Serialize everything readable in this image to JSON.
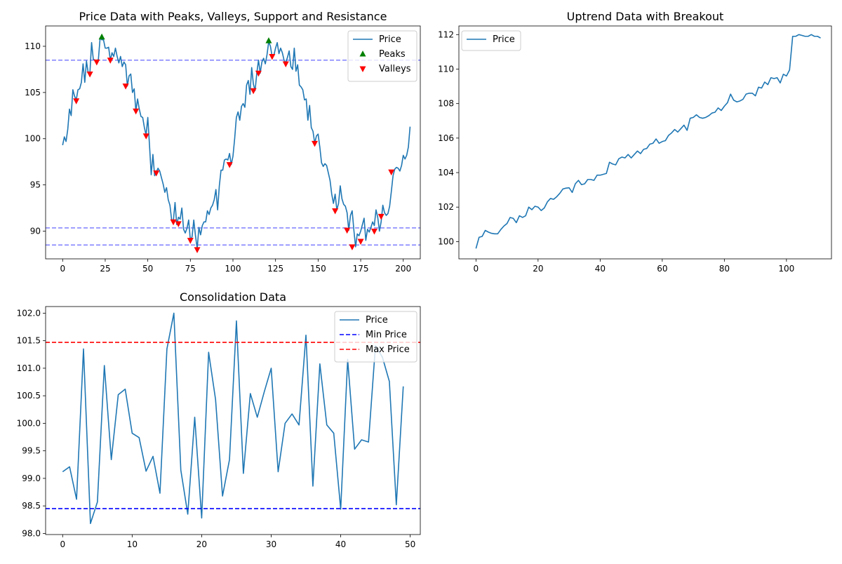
{
  "chart_data": [
    {
      "type": "line",
      "title": "Price Data with Peaks, Valleys, Support and Resistance",
      "xlim": [
        -10,
        210
      ],
      "ylim": [
        87,
        112.2
      ],
      "xticks": [
        0,
        25,
        50,
        75,
        100,
        125,
        150,
        175,
        200
      ],
      "yticks": [
        90,
        95,
        100,
        105,
        110
      ],
      "x_start": 0,
      "x_step": 1,
      "legend": {
        "position": "top-right",
        "entries": [
          "Price",
          "Peaks",
          "Valleys"
        ]
      },
      "series": [
        {
          "name": "Price",
          "color": "#1f77b4",
          "values": [
            99.3,
            100.2,
            99.7,
            101.0,
            103.2,
            102.5,
            105.3,
            104.6,
            104.2,
            105.3,
            105.4,
            106.1,
            108.1,
            106.1,
            108.4,
            107.1,
            107.1,
            110.4,
            108.6,
            108.5,
            108.4,
            108.6,
            110.9,
            110.7,
            110.7,
            109.8,
            109.8,
            109.9,
            108.5,
            109.3,
            108.9,
            109.8,
            108.9,
            108.2,
            108.9,
            107.8,
            108.3,
            108.0,
            105.7,
            106.8,
            107.0,
            105.0,
            105.4,
            103.0,
            104.3,
            103.2,
            102.4,
            102.3,
            101.2,
            100.4,
            102.3,
            99.3,
            96.1,
            98.3,
            96.0,
            96.4,
            96.8,
            96.5,
            95.8,
            95.1,
            94.2,
            94.7,
            93.4,
            92.8,
            91.2,
            91.1,
            93.1,
            90.7,
            91.5,
            91.3,
            92.5,
            90.2,
            89.8,
            90.3,
            91.2,
            89.0,
            89.4,
            91.2,
            89.5,
            88.1,
            90.4,
            89.6,
            90.6,
            91.0,
            91.0,
            92.2,
            91.8,
            92.5,
            92.8,
            93.4,
            94.5,
            92.3,
            94.9,
            96.6,
            96.6,
            97.7,
            97.8,
            97.7,
            98.4,
            97.2,
            98.1,
            100.0,
            102.3,
            102.9,
            102.0,
            103.5,
            103.8,
            103.4,
            105.8,
            106.3,
            104.8,
            107.7,
            105.9,
            105.2,
            107.1,
            108.5,
            107.1,
            108.3,
            108.7,
            108.1,
            109.1,
            110.5,
            110.0,
            108.9,
            109.0,
            109.8,
            110.4,
            109.2,
            109.8,
            109.3,
            108.5,
            108.2,
            108.8,
            109.5,
            107.8,
            107.5,
            109.8,
            107.3,
            108.0,
            105.8,
            105.6,
            105.3,
            104.2,
            104.3,
            102.0,
            103.6,
            101.2,
            100.8,
            99.5,
            100.3,
            100.5,
            99.1,
            97.4,
            97.0,
            97.3,
            97.1,
            96.3,
            95.5,
            94.0,
            93.0,
            94.0,
            92.3,
            93.0,
            94.9,
            93.5,
            92.9,
            92.7,
            92.0,
            90.1,
            91.7,
            92.2,
            90.1,
            88.3,
            89.7,
            89.5,
            90.0,
            90.7,
            91.4,
            89.0,
            90.2,
            89.9,
            90.4,
            91.0,
            90.6,
            92.3,
            91.5,
            90.0,
            91.0,
            92.8,
            92.0,
            91.7,
            91.9,
            92.7,
            94.3,
            96.0,
            96.7,
            96.9,
            96.8,
            96.5,
            97.1,
            98.2,
            97.8,
            98.2,
            99.1,
            101.3
          ]
        },
        {
          "name": "Peaks",
          "color": "#008000",
          "marker": "^",
          "points": [
            [
              23,
              111.0
            ],
            [
              121,
              110.6
            ]
          ]
        },
        {
          "name": "Valleys",
          "color": "#ff0000",
          "marker": "v",
          "points": [
            [
              8,
              104.1
            ],
            [
              16,
              107.0
            ],
            [
              20,
              108.3
            ],
            [
              28,
              108.5
            ],
            [
              37,
              105.7
            ],
            [
              43,
              103.0
            ],
            [
              49,
              100.3
            ],
            [
              55,
              96.3
            ],
            [
              65,
              91.0
            ],
            [
              68,
              90.8
            ],
            [
              75,
              89.0
            ],
            [
              79,
              88.0
            ],
            [
              98,
              97.2
            ],
            [
              112,
              105.2
            ],
            [
              115,
              107.1
            ],
            [
              123,
              108.9
            ],
            [
              131,
              108.1
            ],
            [
              148,
              99.5
            ],
            [
              160,
              92.2
            ],
            [
              167,
              90.1
            ],
            [
              170,
              88.3
            ],
            [
              175,
              88.9
            ],
            [
              183,
              90.0
            ],
            [
              187,
              91.6
            ],
            [
              193,
              96.4
            ]
          ]
        }
      ],
      "hlines": [
        {
          "y": 108.5,
          "color": "#0000ff",
          "alpha": 0.5,
          "style": "dashed"
        },
        {
          "y": 90.35,
          "color": "#0000ff",
          "alpha": 0.5,
          "style": "dashed"
        },
        {
          "y": 88.5,
          "color": "#0000ff",
          "alpha": 0.5,
          "style": "dashed"
        }
      ]
    },
    {
      "type": "line",
      "title": "Uptrend Data with Breakout",
      "xlim": [
        -5.5,
        114.5
      ],
      "ylim": [
        99.0,
        112.5
      ],
      "xticks": [
        0,
        20,
        40,
        60,
        80,
        100
      ],
      "yticks": [
        100,
        102,
        104,
        106,
        108,
        110,
        112
      ],
      "x_start": 0,
      "x_step": 1,
      "legend": {
        "position": "top-left",
        "entries": [
          "Price"
        ]
      },
      "series": [
        {
          "name": "Price",
          "color": "#1f77b4",
          "values": [
            99.6,
            100.25,
            100.3,
            100.65,
            100.55,
            100.48,
            100.45,
            100.45,
            100.7,
            100.9,
            101.05,
            101.4,
            101.35,
            101.1,
            101.5,
            101.4,
            101.5,
            102.0,
            101.85,
            102.05,
            102.0,
            101.8,
            101.95,
            102.3,
            102.5,
            102.45,
            102.6,
            102.8,
            103.05,
            103.1,
            103.12,
            102.85,
            103.35,
            103.55,
            103.3,
            103.35,
            103.6,
            103.6,
            103.55,
            103.85,
            103.85,
            103.9,
            103.95,
            104.6,
            104.5,
            104.45,
            104.8,
            104.9,
            104.85,
            105.05,
            104.85,
            105.05,
            105.25,
            105.1,
            105.35,
            105.4,
            105.65,
            105.7,
            105.95,
            105.7,
            105.8,
            105.85,
            106.15,
            106.3,
            106.5,
            106.35,
            106.55,
            106.75,
            106.45,
            107.15,
            107.2,
            107.35,
            107.2,
            107.15,
            107.2,
            107.3,
            107.45,
            107.5,
            107.75,
            107.6,
            107.85,
            108.05,
            108.55,
            108.2,
            108.1,
            108.15,
            108.25,
            108.55,
            108.6,
            108.6,
            108.45,
            108.95,
            108.9,
            109.25,
            109.1,
            109.5,
            109.45,
            109.5,
            109.2,
            109.7,
            109.6,
            109.95,
            111.9,
            111.9,
            112.0,
            111.95,
            111.9,
            111.9,
            112.0,
            111.9,
            111.9,
            111.8
          ]
        }
      ]
    },
    {
      "type": "line",
      "title": "Consolidation Data",
      "xlim": [
        -2.45,
        51.45
      ],
      "ylim": [
        97.98,
        102.12
      ],
      "xticks": [
        0,
        10,
        20,
        30,
        40,
        50
      ],
      "yticks": [
        98.0,
        98.5,
        99.0,
        99.5,
        100.0,
        100.5,
        101.0,
        101.5,
        102.0
      ],
      "x_start": 0,
      "x_step": 1,
      "legend": {
        "position": "top-right",
        "entries": [
          "Price",
          "Min Price",
          "Max Price"
        ]
      },
      "series": [
        {
          "name": "Price",
          "color": "#1f77b4",
          "values": [
            99.12,
            99.21,
            98.62,
            101.35,
            98.18,
            98.57,
            101.05,
            99.34,
            100.52,
            100.62,
            99.82,
            99.74,
            99.13,
            99.4,
            98.73,
            101.35,
            102.0,
            99.15,
            98.35,
            100.11,
            98.28,
            101.29,
            100.43,
            98.68,
            99.34,
            101.86,
            99.09,
            100.54,
            100.11,
            100.57,
            101.0,
            99.12,
            100.0,
            100.17,
            99.97,
            101.6,
            98.86,
            101.08,
            99.97,
            99.82,
            98.44,
            101.16,
            99.53,
            99.7,
            99.66,
            101.41,
            101.2,
            100.76,
            98.52,
            100.67
          ]
        },
        {
          "name": "Min Price",
          "color": "#0000ff",
          "style": "dashed",
          "y": 98.45
        },
        {
          "name": "Max Price",
          "color": "#ff0000",
          "style": "dashed",
          "y": 101.47
        }
      ]
    }
  ]
}
